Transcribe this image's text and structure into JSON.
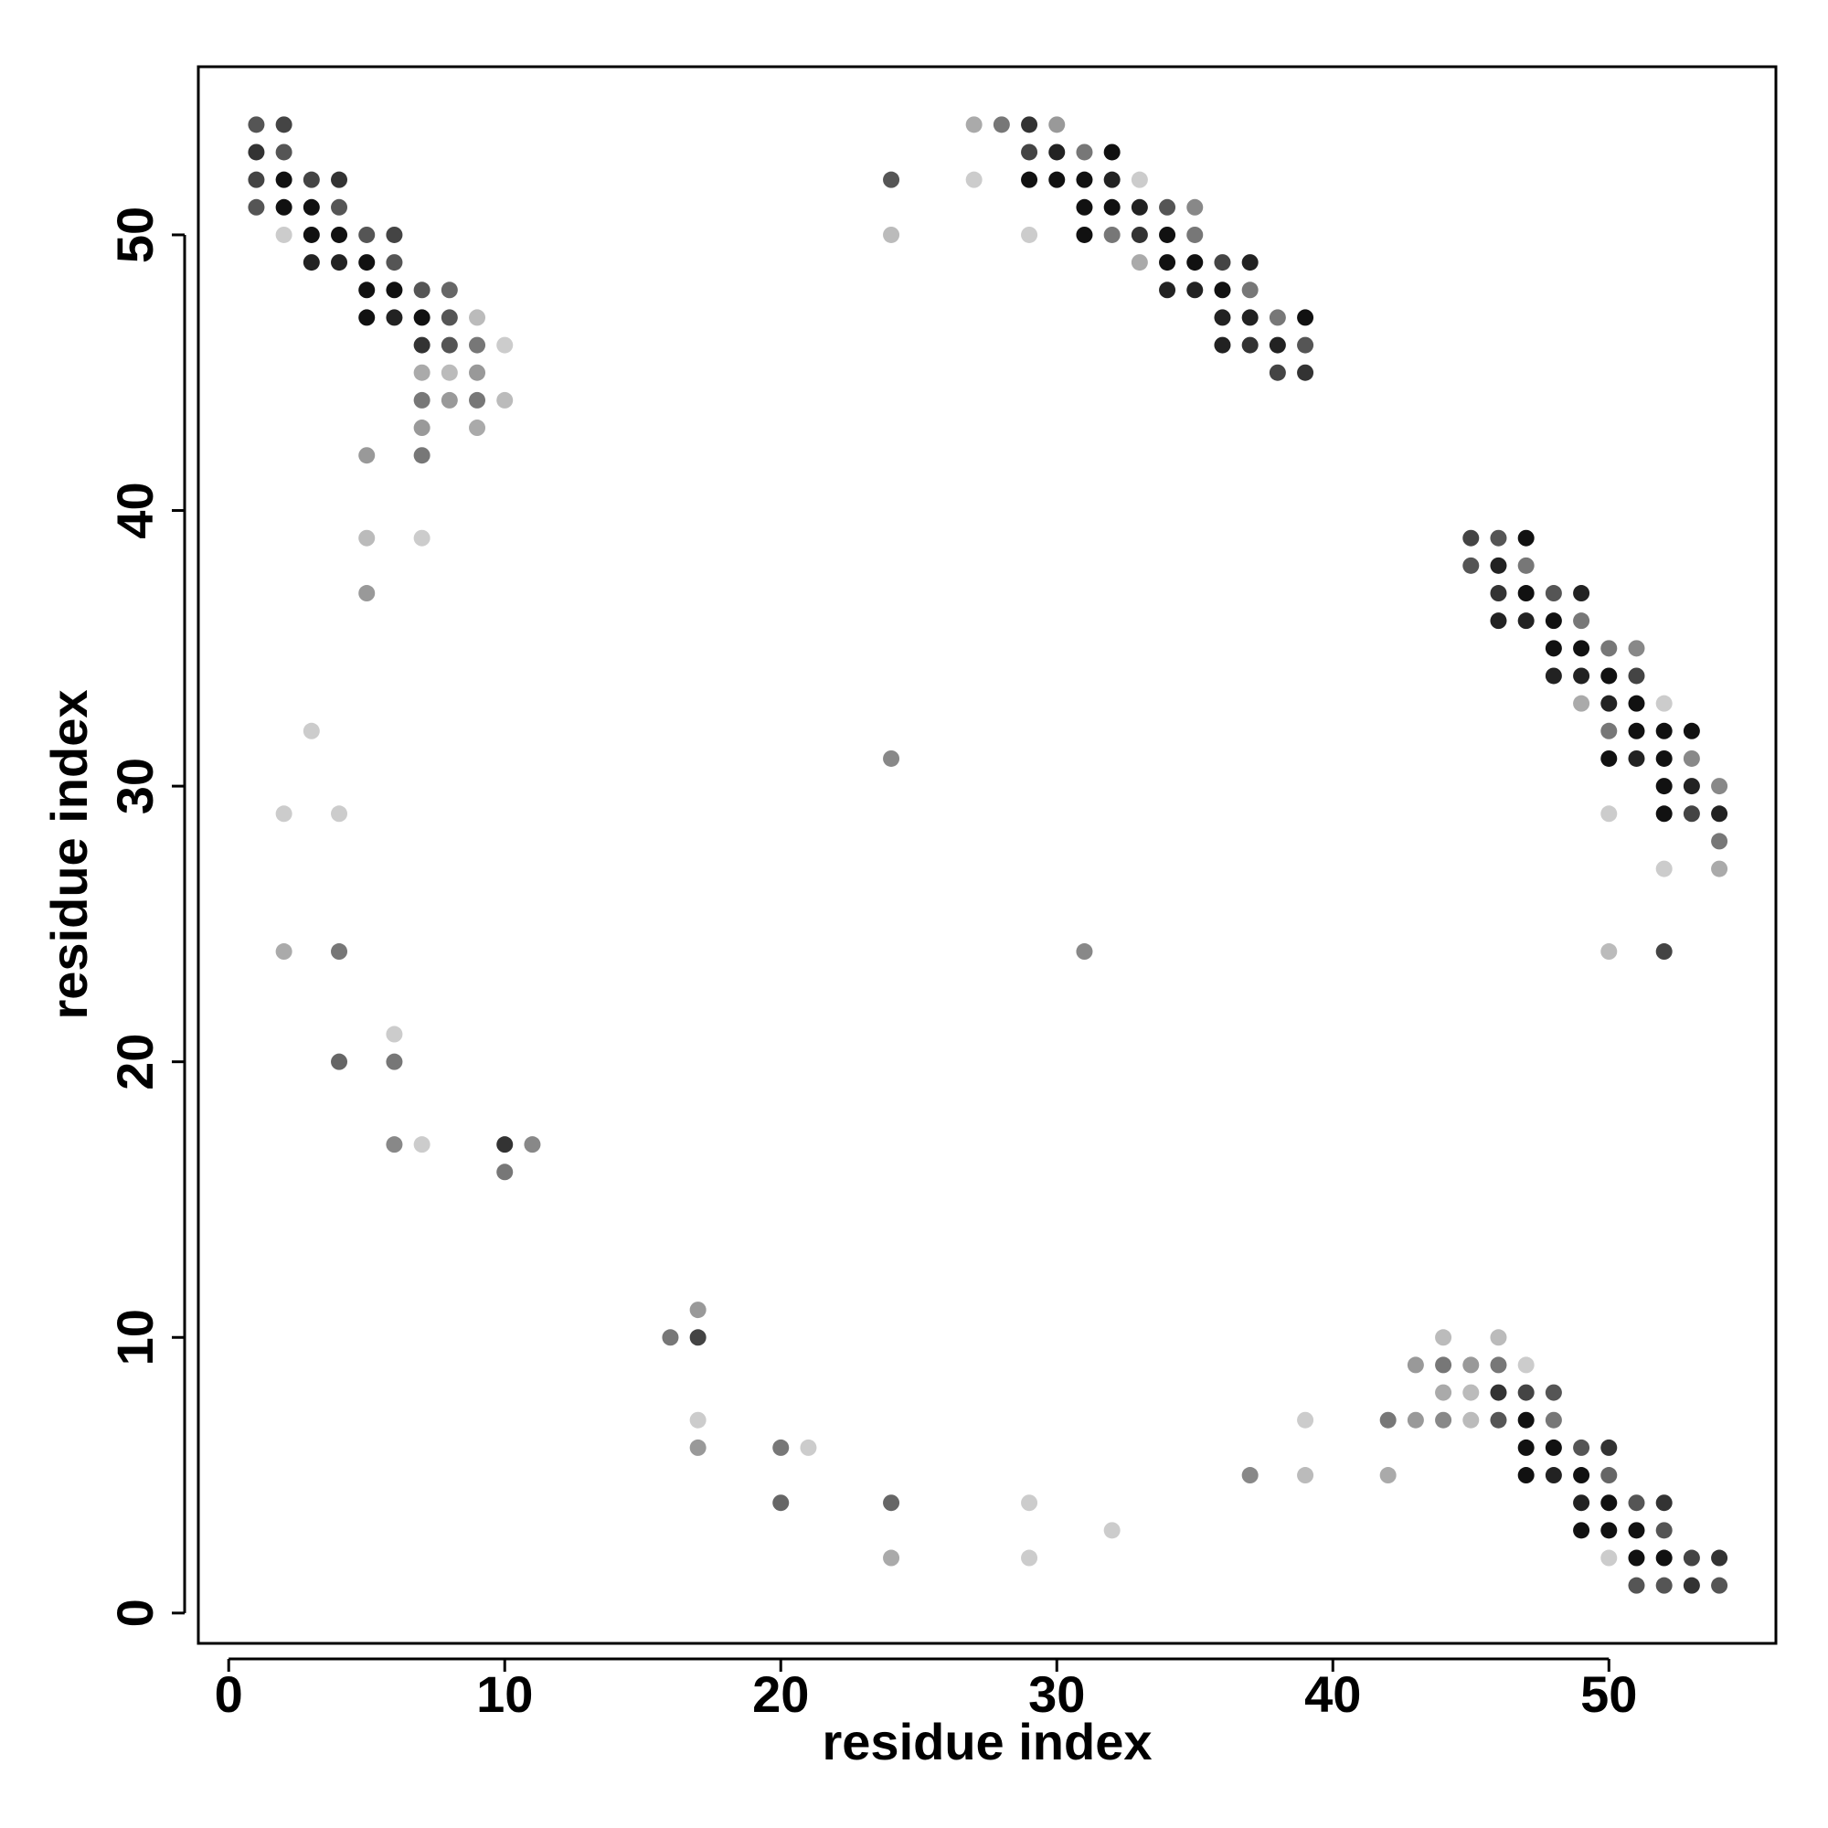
{
  "chart_data": {
    "type": "scatter",
    "xlabel": "residue index",
    "ylabel": "residue index",
    "xlim": [
      -1.1,
      56.05
    ],
    "ylim": [
      -1.1,
      56.1
    ],
    "xticks": [
      0,
      10,
      20,
      30,
      40,
      50
    ],
    "yticks": [
      0,
      10,
      20,
      30,
      40,
      50
    ],
    "x": [
      1,
      2,
      1,
      2,
      1,
      2,
      3,
      4,
      1,
      2,
      3,
      4,
      2,
      3,
      4,
      5,
      6,
      3,
      4,
      5,
      6,
      5,
      6,
      7,
      8,
      5,
      6,
      7,
      8,
      9,
      7,
      8,
      9,
      10,
      7,
      8,
      9,
      7,
      8,
      9,
      10,
      7,
      9,
      5,
      7,
      5,
      7,
      5,
      3,
      2,
      4,
      2,
      4,
      6,
      4,
      6,
      6,
      7,
      10,
      11,
      10,
      17,
      16,
      17,
      17,
      17,
      20,
      21,
      20,
      24,
      29,
      32,
      24,
      29,
      27,
      28,
      29,
      30,
      29,
      30,
      31,
      32,
      24,
      27,
      29,
      30,
      31,
      32,
      33,
      31,
      32,
      33,
      34,
      35,
      24,
      29,
      31,
      32,
      33,
      34,
      35,
      33,
      34,
      35,
      36,
      37,
      34,
      35,
      36,
      37,
      36,
      37,
      38,
      39,
      36,
      37,
      38,
      39,
      38,
      39,
      24,
      31,
      45,
      46,
      47,
      45,
      46,
      47,
      46,
      47,
      48,
      49,
      46,
      47,
      48,
      49,
      48,
      49,
      50,
      51,
      48,
      49,
      50,
      51,
      49,
      50,
      51,
      52,
      50,
      51,
      52,
      53,
      50,
      51,
      52,
      53,
      52,
      53,
      54,
      50,
      52,
      53,
      54,
      54,
      52,
      54,
      50,
      52,
      44,
      46,
      43,
      44,
      45,
      46,
      47,
      44,
      45,
      46,
      47,
      48,
      39,
      42,
      43,
      44,
      45,
      46,
      47,
      48,
      47,
      48,
      49,
      50,
      37,
      39,
      42,
      47,
      48,
      49,
      50,
      49,
      50,
      51,
      52,
      49,
      50,
      51,
      52,
      50,
      51,
      52,
      53,
      54,
      51,
      52,
      53,
      54
    ],
    "y": [
      54,
      54,
      53,
      53,
      52,
      52,
      52,
      52,
      51,
      51,
      51,
      51,
      50,
      50,
      50,
      50,
      50,
      49,
      49,
      49,
      49,
      48,
      48,
      48,
      48,
      47,
      47,
      47,
      47,
      47,
      46,
      46,
      46,
      46,
      45,
      45,
      45,
      44,
      44,
      44,
      44,
      43,
      43,
      42,
      42,
      39,
      39,
      37,
      32,
      29,
      29,
      24,
      24,
      21,
      20,
      20,
      17,
      17,
      17,
      17,
      16,
      11,
      10,
      10,
      7,
      6,
      6,
      6,
      4,
      4,
      4,
      3,
      2,
      2,
      54,
      54,
      54,
      54,
      53,
      53,
      53,
      53,
      52,
      52,
      52,
      52,
      52,
      52,
      52,
      51,
      51,
      51,
      51,
      51,
      50,
      50,
      50,
      50,
      50,
      50,
      50,
      49,
      49,
      49,
      49,
      49,
      48,
      48,
      48,
      48,
      47,
      47,
      47,
      47,
      46,
      46,
      46,
      46,
      45,
      45,
      31,
      24,
      39,
      39,
      39,
      38,
      38,
      38,
      37,
      37,
      37,
      37,
      36,
      36,
      36,
      36,
      35,
      35,
      35,
      35,
      34,
      34,
      34,
      34,
      33,
      33,
      33,
      33,
      32,
      32,
      32,
      32,
      31,
      31,
      31,
      31,
      30,
      30,
      30,
      29,
      29,
      29,
      29,
      28,
      27,
      27,
      24,
      24,
      10,
      10,
      9,
      9,
      9,
      9,
      9,
      8,
      8,
      8,
      8,
      8,
      7,
      7,
      7,
      7,
      7,
      7,
      7,
      7,
      6,
      6,
      6,
      6,
      5,
      5,
      5,
      5,
      5,
      5,
      5,
      4,
      4,
      4,
      4,
      3,
      3,
      3,
      3,
      2,
      2,
      2,
      2,
      2,
      1,
      1,
      1,
      1
    ],
    "colors": [
      "#555",
      "#444",
      "#333",
      "#555",
      "#444",
      "#111",
      "#444",
      "#333",
      "#555",
      "#111",
      "#111",
      "#555",
      "#ccc",
      "#111",
      "#111",
      "#555",
      "#444",
      "#222",
      "#222",
      "#111",
      "#555",
      "#111",
      "#111",
      "#555",
      "#666",
      "#111",
      "#222",
      "#111",
      "#555",
      "#bbb",
      "#333",
      "#555",
      "#777",
      "#ccc",
      "#aaa",
      "#bbb",
      "#999",
      "#777",
      "#999",
      "#777",
      "#bbb",
      "#999",
      "#aaa",
      "#999",
      "#777",
      "#bbb",
      "#ccc",
      "#999",
      "#ccc",
      "#ccc",
      "#ccc",
      "#aaa",
      "#777",
      "#ccc",
      "#666",
      "#777",
      "#888",
      "#ccc",
      "#333",
      "#888",
      "#777",
      "#999",
      "#777",
      "#444",
      "#ccc",
      "#999",
      "#777",
      "#ccc",
      "#666",
      "#666",
      "#ccc",
      "#ccc",
      "#aaa",
      "#ccc",
      "#aaa",
      "#777",
      "#333",
      "#999",
      "#444",
      "#222",
      "#777",
      "#111",
      "#555",
      "#ccc",
      "#111",
      "#111",
      "#111",
      "#222",
      "#ccc",
      "#111",
      "#111",
      "#222",
      "#555",
      "#888",
      "#bbb",
      "#ccc",
      "#111",
      "#777",
      "#333",
      "#111",
      "#777",
      "#aaa",
      "#111",
      "#111",
      "#444",
      "#222",
      "#222",
      "#222",
      "#111",
      "#777",
      "#222",
      "#222",
      "#777",
      "#111",
      "#222",
      "#333",
      "#222",
      "#555",
      "#444",
      "#333",
      "#888",
      "#888",
      "#444",
      "#555",
      "#111",
      "#555",
      "#222",
      "#777",
      "#333",
      "#111",
      "#555",
      "#222",
      "#222",
      "#222",
      "#111",
      "#777",
      "#111",
      "#111",
      "#777",
      "#888",
      "#222",
      "#222",
      "#111",
      "#444",
      "#aaa",
      "#222",
      "#111",
      "#ccc",
      "#777",
      "#111",
      "#111",
      "#111",
      "#111",
      "#222",
      "#111",
      "#888",
      "#111",
      "#222",
      "#888",
      "#ccc",
      "#111",
      "#444",
      "#222",
      "#777",
      "#ccc",
      "#aaa",
      "#bbb",
      "#444",
      "#bbb",
      "#bbb",
      "#999",
      "#777",
      "#999",
      "#777",
      "#ccc",
      "#aaa",
      "#bbb",
      "#333",
      "#444",
      "#555",
      "#ccc",
      "#777",
      "#999",
      "#888",
      "#bbb",
      "#555",
      "#111",
      "#777",
      "#111",
      "#111",
      "#555",
      "#333",
      "#888",
      "#bbb",
      "#aaa",
      "#111",
      "#222",
      "#111",
      "#666",
      "#222",
      "#111",
      "#555",
      "#333",
      "#111",
      "#111",
      "#111",
      "#555",
      "#ccc",
      "#111",
      "#111",
      "#444",
      "#333",
      "#555",
      "#555",
      "#333",
      "#555"
    ]
  }
}
